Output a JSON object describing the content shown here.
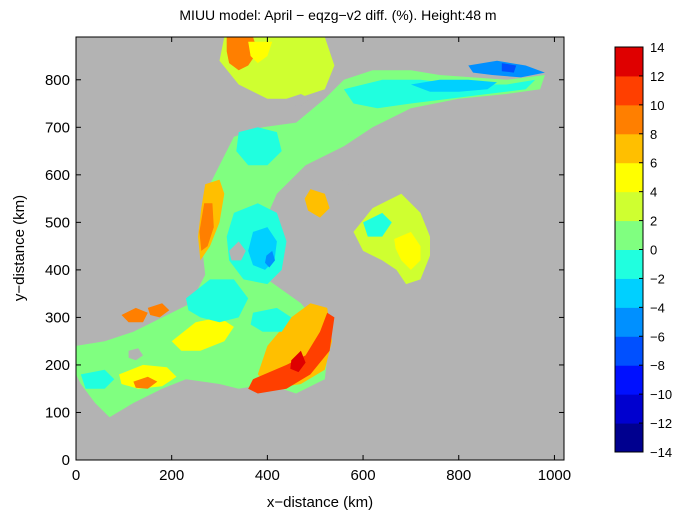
{
  "chart_data": {
    "type": "heatmap",
    "title": "MIUU model: April − eqzg−v2 diff. (%). Height:48 m",
    "xlabel": "x−distance (km)",
    "ylabel": "y−distance (km)",
    "xlim": [
      0,
      1020
    ],
    "ylim": [
      0,
      890
    ],
    "xticks": [
      "0",
      "200",
      "400",
      "600",
      "800",
      "1000"
    ],
    "yticks": [
      "0",
      "100",
      "200",
      "300",
      "400",
      "500",
      "600",
      "700",
      "800"
    ],
    "grid": false,
    "background_color": "#b3b3b3",
    "colorbar": {
      "range": [
        -14,
        14
      ],
      "step": 2,
      "tick_labels": [
        "14",
        "12",
        "10",
        "8",
        "6",
        "4",
        "2",
        "0",
        "−2",
        "−4",
        "−6",
        "−8",
        "−10",
        "−12",
        "−14"
      ],
      "colors": [
        "#00008f",
        "#0000cf",
        "#0010ff",
        "#0050ff",
        "#0090ff",
        "#00d0ff",
        "#20ffdf",
        "#80ff80",
        "#cfff30",
        "#ffff00",
        "#ffbf00",
        "#ff7f00",
        "#ff3f00",
        "#df0000"
      ]
    },
    "regions": [
      {
        "name": "main-sea",
        "value": 1.5,
        "points": [
          [
            0,
            240
          ],
          [
            60,
            250
          ],
          [
            120,
            270
          ],
          [
            200,
            310
          ],
          [
            240,
            330
          ],
          [
            270,
            390
          ],
          [
            260,
            480
          ],
          [
            270,
            560
          ],
          [
            300,
            620
          ],
          [
            330,
            680
          ],
          [
            390,
            700
          ],
          [
            460,
            710
          ],
          [
            520,
            760
          ],
          [
            560,
            800
          ],
          [
            620,
            820
          ],
          [
            700,
            820
          ],
          [
            760,
            810
          ],
          [
            900,
            800
          ],
          [
            980,
            810
          ],
          [
            970,
            780
          ],
          [
            900,
            770
          ],
          [
            800,
            760
          ],
          [
            700,
            740
          ],
          [
            620,
            700
          ],
          [
            560,
            660
          ],
          [
            480,
            620
          ],
          [
            420,
            560
          ],
          [
            380,
            470
          ],
          [
            400,
            380
          ],
          [
            470,
            330
          ],
          [
            530,
            260
          ],
          [
            520,
            170
          ],
          [
            460,
            140
          ],
          [
            400,
            160
          ],
          [
            340,
            150
          ],
          [
            300,
            160
          ],
          [
            230,
            170
          ],
          [
            180,
            150
          ],
          [
            120,
            120
          ],
          [
            70,
            90
          ],
          [
            40,
            120
          ],
          [
            10,
            160
          ],
          [
            0,
            180
          ]
        ]
      },
      {
        "name": "north-gulf",
        "value": 2.0,
        "points": [
          [
            310,
            890
          ],
          [
            520,
            890
          ],
          [
            540,
            830
          ],
          [
            520,
            780
          ],
          [
            460,
            760
          ],
          [
            400,
            760
          ],
          [
            340,
            790
          ],
          [
            300,
            840
          ]
        ]
      },
      {
        "name": "east-bay",
        "value": 2.5,
        "points": [
          [
            580,
            480
          ],
          [
            620,
            530
          ],
          [
            680,
            560
          ],
          [
            720,
            520
          ],
          [
            740,
            470
          ],
          [
            740,
            430
          ],
          [
            720,
            380
          ],
          [
            690,
            370
          ],
          [
            670,
            400
          ],
          [
            640,
            420
          ],
          [
            600,
            440
          ]
        ]
      },
      {
        "name": "north-tip-hot",
        "value": 9.0,
        "points": [
          [
            315,
            890
          ],
          [
            370,
            890
          ],
          [
            380,
            860
          ],
          [
            360,
            830
          ],
          [
            340,
            820
          ],
          [
            320,
            835
          ],
          [
            315,
            860
          ]
        ]
      },
      {
        "name": "north-tip-warm",
        "value": 5.0,
        "points": [
          [
            360,
            880
          ],
          [
            410,
            880
          ],
          [
            400,
            850
          ],
          [
            380,
            835
          ],
          [
            365,
            850
          ]
        ]
      },
      {
        "name": "west-coast-warm",
        "value": 6.5,
        "points": [
          [
            270,
            580
          ],
          [
            300,
            590
          ],
          [
            310,
            560
          ],
          [
            300,
            500
          ],
          [
            280,
            450
          ],
          [
            260,
            420
          ],
          [
            255,
            470
          ],
          [
            262,
            530
          ]
        ]
      },
      {
        "name": "west-coast-hot",
        "value": 9.0,
        "points": [
          [
            268,
            540
          ],
          [
            285,
            540
          ],
          [
            288,
            490
          ],
          [
            275,
            450
          ],
          [
            262,
            440
          ],
          [
            258,
            480
          ]
        ]
      },
      {
        "name": "center-warm",
        "value": 6.0,
        "points": [
          [
            490,
            570
          ],
          [
            520,
            560
          ],
          [
            530,
            530
          ],
          [
            510,
            510
          ],
          [
            485,
            525
          ],
          [
            478,
            550
          ]
        ]
      },
      {
        "name": "east-bay-warm",
        "value": 5.5,
        "points": [
          [
            665,
            465
          ],
          [
            700,
            480
          ],
          [
            720,
            450
          ],
          [
            720,
            420
          ],
          [
            700,
            400
          ],
          [
            680,
            420
          ],
          [
            668,
            445
          ]
        ]
      },
      {
        "name": "south-east-warm",
        "value": 6.0,
        "points": [
          [
            400,
            240
          ],
          [
            450,
            300
          ],
          [
            490,
            330
          ],
          [
            525,
            320
          ],
          [
            535,
            250
          ],
          [
            520,
            190
          ],
          [
            470,
            160
          ],
          [
            410,
            150
          ],
          [
            380,
            180
          ]
        ]
      },
      {
        "name": "south-east-hot",
        "value": 10.0,
        "points": [
          [
            370,
            170
          ],
          [
            440,
            200
          ],
          [
            480,
            220
          ],
          [
            510,
            270
          ],
          [
            525,
            310
          ],
          [
            540,
            300
          ],
          [
            530,
            230
          ],
          [
            490,
            180
          ],
          [
            440,
            150
          ],
          [
            380,
            140
          ],
          [
            360,
            150
          ]
        ]
      },
      {
        "name": "south-east-core",
        "value": 12.5,
        "points": [
          [
            450,
            210
          ],
          [
            470,
            230
          ],
          [
            480,
            205
          ],
          [
            465,
            185
          ],
          [
            448,
            192
          ]
        ]
      },
      {
        "name": "south-west-warm",
        "value": 5.0,
        "points": [
          [
            90,
            180
          ],
          [
            140,
            200
          ],
          [
            190,
            195
          ],
          [
            210,
            175
          ],
          [
            180,
            155
          ],
          [
            130,
            150
          ],
          [
            95,
            160
          ]
        ]
      },
      {
        "name": "south-west-hot",
        "value": 8.0,
        "points": [
          [
            120,
            165
          ],
          [
            150,
            175
          ],
          [
            170,
            165
          ],
          [
            150,
            150
          ],
          [
            125,
            152
          ]
        ]
      },
      {
        "name": "south-coast-warm",
        "value": 4.5,
        "points": [
          [
            200,
            250
          ],
          [
            250,
            290
          ],
          [
            300,
            300
          ],
          [
            330,
            280
          ],
          [
            310,
            250
          ],
          [
            260,
            230
          ],
          [
            220,
            230
          ]
        ]
      },
      {
        "name": "sw-small-hot",
        "value": 8.0,
        "points": [
          [
            95,
            305
          ],
          [
            125,
            320
          ],
          [
            150,
            310
          ],
          [
            140,
            290
          ],
          [
            110,
            290
          ]
        ]
      },
      {
        "name": "sw-small-hot-2",
        "value": 8.0,
        "points": [
          [
            150,
            320
          ],
          [
            180,
            330
          ],
          [
            195,
            315
          ],
          [
            175,
            300
          ],
          [
            155,
            305
          ]
        ]
      },
      {
        "name": "center-cool",
        "value": -0.5,
        "points": [
          [
            330,
            520
          ],
          [
            380,
            540
          ],
          [
            420,
            520
          ],
          [
            440,
            460
          ],
          [
            430,
            400
          ],
          [
            400,
            370
          ],
          [
            350,
            380
          ],
          [
            320,
            420
          ],
          [
            315,
            470
          ]
        ]
      },
      {
        "name": "center-cooler",
        "value": -2.5,
        "points": [
          [
            370,
            480
          ],
          [
            400,
            490
          ],
          [
            420,
            460
          ],
          [
            415,
            420
          ],
          [
            395,
            400
          ],
          [
            370,
            410
          ],
          [
            360,
            440
          ]
        ]
      },
      {
        "name": "center-coolest",
        "value": -4.5,
        "points": [
          [
            398,
            430
          ],
          [
            410,
            440
          ],
          [
            416,
            420
          ],
          [
            404,
            405
          ],
          [
            395,
            415
          ]
        ]
      },
      {
        "name": "nw-cool",
        "value": -0.5,
        "points": [
          [
            340,
            690
          ],
          [
            380,
            700
          ],
          [
            420,
            690
          ],
          [
            430,
            650
          ],
          [
            400,
            620
          ],
          [
            360,
            620
          ],
          [
            335,
            650
          ]
        ]
      },
      {
        "name": "gulf-cool",
        "value": -1.0,
        "points": [
          [
            560,
            780
          ],
          [
            640,
            800
          ],
          [
            720,
            800
          ],
          [
            800,
            790
          ],
          [
            900,
            790
          ],
          [
            960,
            800
          ],
          [
            940,
            780
          ],
          [
            860,
            770
          ],
          [
            780,
            760
          ],
          [
            700,
            750
          ],
          [
            630,
            740
          ],
          [
            580,
            750
          ]
        ]
      },
      {
        "name": "gulf-cooler",
        "value": -3.0,
        "points": [
          [
            700,
            790
          ],
          [
            760,
            800
          ],
          [
            820,
            800
          ],
          [
            880,
            795
          ],
          [
            860,
            780
          ],
          [
            800,
            775
          ],
          [
            740,
            775
          ]
        ]
      },
      {
        "name": "gulf-tip-cold",
        "value": -5.5,
        "points": [
          [
            820,
            830
          ],
          [
            880,
            840
          ],
          [
            940,
            830
          ],
          [
            980,
            815
          ],
          [
            930,
            805
          ],
          [
            870,
            810
          ],
          [
            830,
            815
          ]
        ]
      },
      {
        "name": "gulf-tip-colder",
        "value": -7.0,
        "points": [
          [
            890,
            835
          ],
          [
            920,
            830
          ],
          [
            915,
            815
          ],
          [
            890,
            818
          ]
        ]
      },
      {
        "name": "east-bay-cool",
        "value": -0.5,
        "points": [
          [
            600,
            500
          ],
          [
            640,
            520
          ],
          [
            660,
            500
          ],
          [
            640,
            470
          ],
          [
            610,
            470
          ]
        ]
      },
      {
        "name": "south-cool",
        "value": -1.0,
        "points": [
          [
            230,
            340
          ],
          [
            280,
            380
          ],
          [
            330,
            380
          ],
          [
            360,
            340
          ],
          [
            340,
            300
          ],
          [
            300,
            290
          ],
          [
            260,
            300
          ],
          [
            235,
            315
          ]
        ]
      },
      {
        "name": "south-cool-2",
        "value": -0.5,
        "points": [
          [
            370,
            310
          ],
          [
            420,
            320
          ],
          [
            450,
            300
          ],
          [
            430,
            270
          ],
          [
            390,
            270
          ],
          [
            365,
            285
          ]
        ]
      },
      {
        "name": "sw-cool",
        "value": -0.5,
        "points": [
          [
            10,
            180
          ],
          [
            60,
            190
          ],
          [
            80,
            170
          ],
          [
            60,
            150
          ],
          [
            20,
            150
          ]
        ]
      },
      {
        "name": "land-north-island",
        "value": null,
        "points": [
          [
            440,
            760
          ],
          [
            470,
            770
          ],
          [
            490,
            760
          ],
          [
            470,
            745
          ],
          [
            445,
            748
          ]
        ]
      },
      {
        "name": "land-island-a",
        "value": null,
        "points": [
          [
            320,
            440
          ],
          [
            340,
            460
          ],
          [
            355,
            440
          ],
          [
            345,
            420
          ],
          [
            325,
            420
          ]
        ]
      },
      {
        "name": "land-island-b",
        "value": null,
        "points": [
          [
            110,
            230
          ],
          [
            130,
            235
          ],
          [
            140,
            220
          ],
          [
            125,
            210
          ],
          [
            110,
            215
          ]
        ]
      },
      {
        "name": "land-island-c",
        "value": null,
        "points": [
          [
            600,
            640
          ],
          [
            630,
            650
          ],
          [
            645,
            630
          ],
          [
            625,
            615
          ],
          [
            600,
            620
          ]
        ]
      },
      {
        "name": "land-island-d",
        "value": null,
        "points": [
          [
            540,
            580
          ],
          [
            560,
            590
          ],
          [
            575,
            575
          ],
          [
            560,
            560
          ],
          [
            540,
            565
          ]
        ]
      }
    ]
  }
}
